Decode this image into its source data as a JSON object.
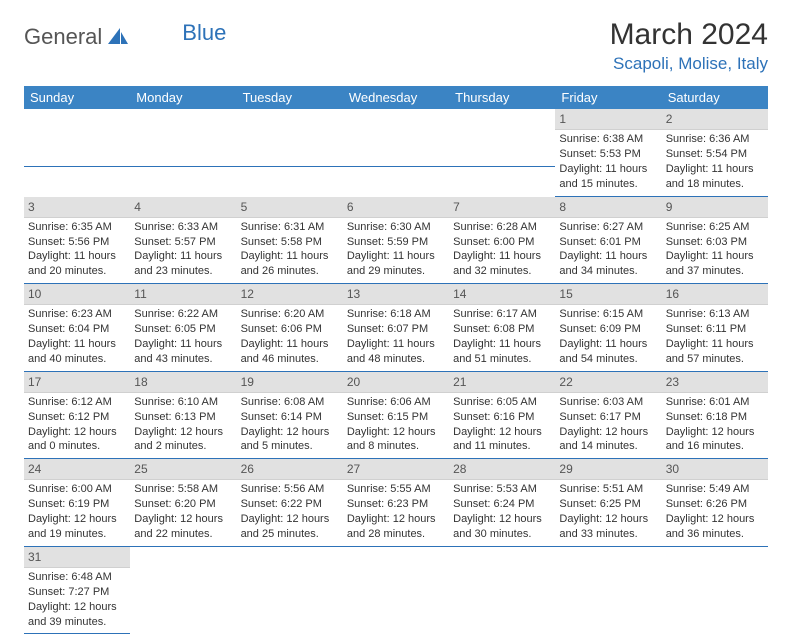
{
  "logo": {
    "part1": "General",
    "part2": "Blue"
  },
  "title": "March 2024",
  "location": "Scapoli, Molise, Italy",
  "colors": {
    "header_bg": "#3b84c4",
    "header_text": "#ffffff",
    "daynum_bg": "#e1e1e1",
    "daynum_text": "#555555",
    "cell_border": "#2d72b8",
    "body_text": "#333333",
    "logo_gray": "#555555",
    "logo_blue": "#2d72b8",
    "location_color": "#2d72b8",
    "background": "#ffffff"
  },
  "typography": {
    "title_fontsize": 30,
    "location_fontsize": 17,
    "header_fontsize": 13,
    "daynum_fontsize": 12,
    "body_fontsize": 11,
    "font_family": "Arial"
  },
  "layout": {
    "columns": 7,
    "rows": 6,
    "leading_blanks": 5
  },
  "weekdays": [
    "Sunday",
    "Monday",
    "Tuesday",
    "Wednesday",
    "Thursday",
    "Friday",
    "Saturday"
  ],
  "days": [
    {
      "n": "1",
      "sunrise": "Sunrise: 6:38 AM",
      "sunset": "Sunset: 5:53 PM",
      "daylight": "Daylight: 11 hours and 15 minutes."
    },
    {
      "n": "2",
      "sunrise": "Sunrise: 6:36 AM",
      "sunset": "Sunset: 5:54 PM",
      "daylight": "Daylight: 11 hours and 18 minutes."
    },
    {
      "n": "3",
      "sunrise": "Sunrise: 6:35 AM",
      "sunset": "Sunset: 5:56 PM",
      "daylight": "Daylight: 11 hours and 20 minutes."
    },
    {
      "n": "4",
      "sunrise": "Sunrise: 6:33 AM",
      "sunset": "Sunset: 5:57 PM",
      "daylight": "Daylight: 11 hours and 23 minutes."
    },
    {
      "n": "5",
      "sunrise": "Sunrise: 6:31 AM",
      "sunset": "Sunset: 5:58 PM",
      "daylight": "Daylight: 11 hours and 26 minutes."
    },
    {
      "n": "6",
      "sunrise": "Sunrise: 6:30 AM",
      "sunset": "Sunset: 5:59 PM",
      "daylight": "Daylight: 11 hours and 29 minutes."
    },
    {
      "n": "7",
      "sunrise": "Sunrise: 6:28 AM",
      "sunset": "Sunset: 6:00 PM",
      "daylight": "Daylight: 11 hours and 32 minutes."
    },
    {
      "n": "8",
      "sunrise": "Sunrise: 6:27 AM",
      "sunset": "Sunset: 6:01 PM",
      "daylight": "Daylight: 11 hours and 34 minutes."
    },
    {
      "n": "9",
      "sunrise": "Sunrise: 6:25 AM",
      "sunset": "Sunset: 6:03 PM",
      "daylight": "Daylight: 11 hours and 37 minutes."
    },
    {
      "n": "10",
      "sunrise": "Sunrise: 6:23 AM",
      "sunset": "Sunset: 6:04 PM",
      "daylight": "Daylight: 11 hours and 40 minutes."
    },
    {
      "n": "11",
      "sunrise": "Sunrise: 6:22 AM",
      "sunset": "Sunset: 6:05 PM",
      "daylight": "Daylight: 11 hours and 43 minutes."
    },
    {
      "n": "12",
      "sunrise": "Sunrise: 6:20 AM",
      "sunset": "Sunset: 6:06 PM",
      "daylight": "Daylight: 11 hours and 46 minutes."
    },
    {
      "n": "13",
      "sunrise": "Sunrise: 6:18 AM",
      "sunset": "Sunset: 6:07 PM",
      "daylight": "Daylight: 11 hours and 48 minutes."
    },
    {
      "n": "14",
      "sunrise": "Sunrise: 6:17 AM",
      "sunset": "Sunset: 6:08 PM",
      "daylight": "Daylight: 11 hours and 51 minutes."
    },
    {
      "n": "15",
      "sunrise": "Sunrise: 6:15 AM",
      "sunset": "Sunset: 6:09 PM",
      "daylight": "Daylight: 11 hours and 54 minutes."
    },
    {
      "n": "16",
      "sunrise": "Sunrise: 6:13 AM",
      "sunset": "Sunset: 6:11 PM",
      "daylight": "Daylight: 11 hours and 57 minutes."
    },
    {
      "n": "17",
      "sunrise": "Sunrise: 6:12 AM",
      "sunset": "Sunset: 6:12 PM",
      "daylight": "Daylight: 12 hours and 0 minutes."
    },
    {
      "n": "18",
      "sunrise": "Sunrise: 6:10 AM",
      "sunset": "Sunset: 6:13 PM",
      "daylight": "Daylight: 12 hours and 2 minutes."
    },
    {
      "n": "19",
      "sunrise": "Sunrise: 6:08 AM",
      "sunset": "Sunset: 6:14 PM",
      "daylight": "Daylight: 12 hours and 5 minutes."
    },
    {
      "n": "20",
      "sunrise": "Sunrise: 6:06 AM",
      "sunset": "Sunset: 6:15 PM",
      "daylight": "Daylight: 12 hours and 8 minutes."
    },
    {
      "n": "21",
      "sunrise": "Sunrise: 6:05 AM",
      "sunset": "Sunset: 6:16 PM",
      "daylight": "Daylight: 12 hours and 11 minutes."
    },
    {
      "n": "22",
      "sunrise": "Sunrise: 6:03 AM",
      "sunset": "Sunset: 6:17 PM",
      "daylight": "Daylight: 12 hours and 14 minutes."
    },
    {
      "n": "23",
      "sunrise": "Sunrise: 6:01 AM",
      "sunset": "Sunset: 6:18 PM",
      "daylight": "Daylight: 12 hours and 16 minutes."
    },
    {
      "n": "24",
      "sunrise": "Sunrise: 6:00 AM",
      "sunset": "Sunset: 6:19 PM",
      "daylight": "Daylight: 12 hours and 19 minutes."
    },
    {
      "n": "25",
      "sunrise": "Sunrise: 5:58 AM",
      "sunset": "Sunset: 6:20 PM",
      "daylight": "Daylight: 12 hours and 22 minutes."
    },
    {
      "n": "26",
      "sunrise": "Sunrise: 5:56 AM",
      "sunset": "Sunset: 6:22 PM",
      "daylight": "Daylight: 12 hours and 25 minutes."
    },
    {
      "n": "27",
      "sunrise": "Sunrise: 5:55 AM",
      "sunset": "Sunset: 6:23 PM",
      "daylight": "Daylight: 12 hours and 28 minutes."
    },
    {
      "n": "28",
      "sunrise": "Sunrise: 5:53 AM",
      "sunset": "Sunset: 6:24 PM",
      "daylight": "Daylight: 12 hours and 30 minutes."
    },
    {
      "n": "29",
      "sunrise": "Sunrise: 5:51 AM",
      "sunset": "Sunset: 6:25 PM",
      "daylight": "Daylight: 12 hours and 33 minutes."
    },
    {
      "n": "30",
      "sunrise": "Sunrise: 5:49 AM",
      "sunset": "Sunset: 6:26 PM",
      "daylight": "Daylight: 12 hours and 36 minutes."
    },
    {
      "n": "31",
      "sunrise": "Sunrise: 6:48 AM",
      "sunset": "Sunset: 7:27 PM",
      "daylight": "Daylight: 12 hours and 39 minutes."
    }
  ]
}
